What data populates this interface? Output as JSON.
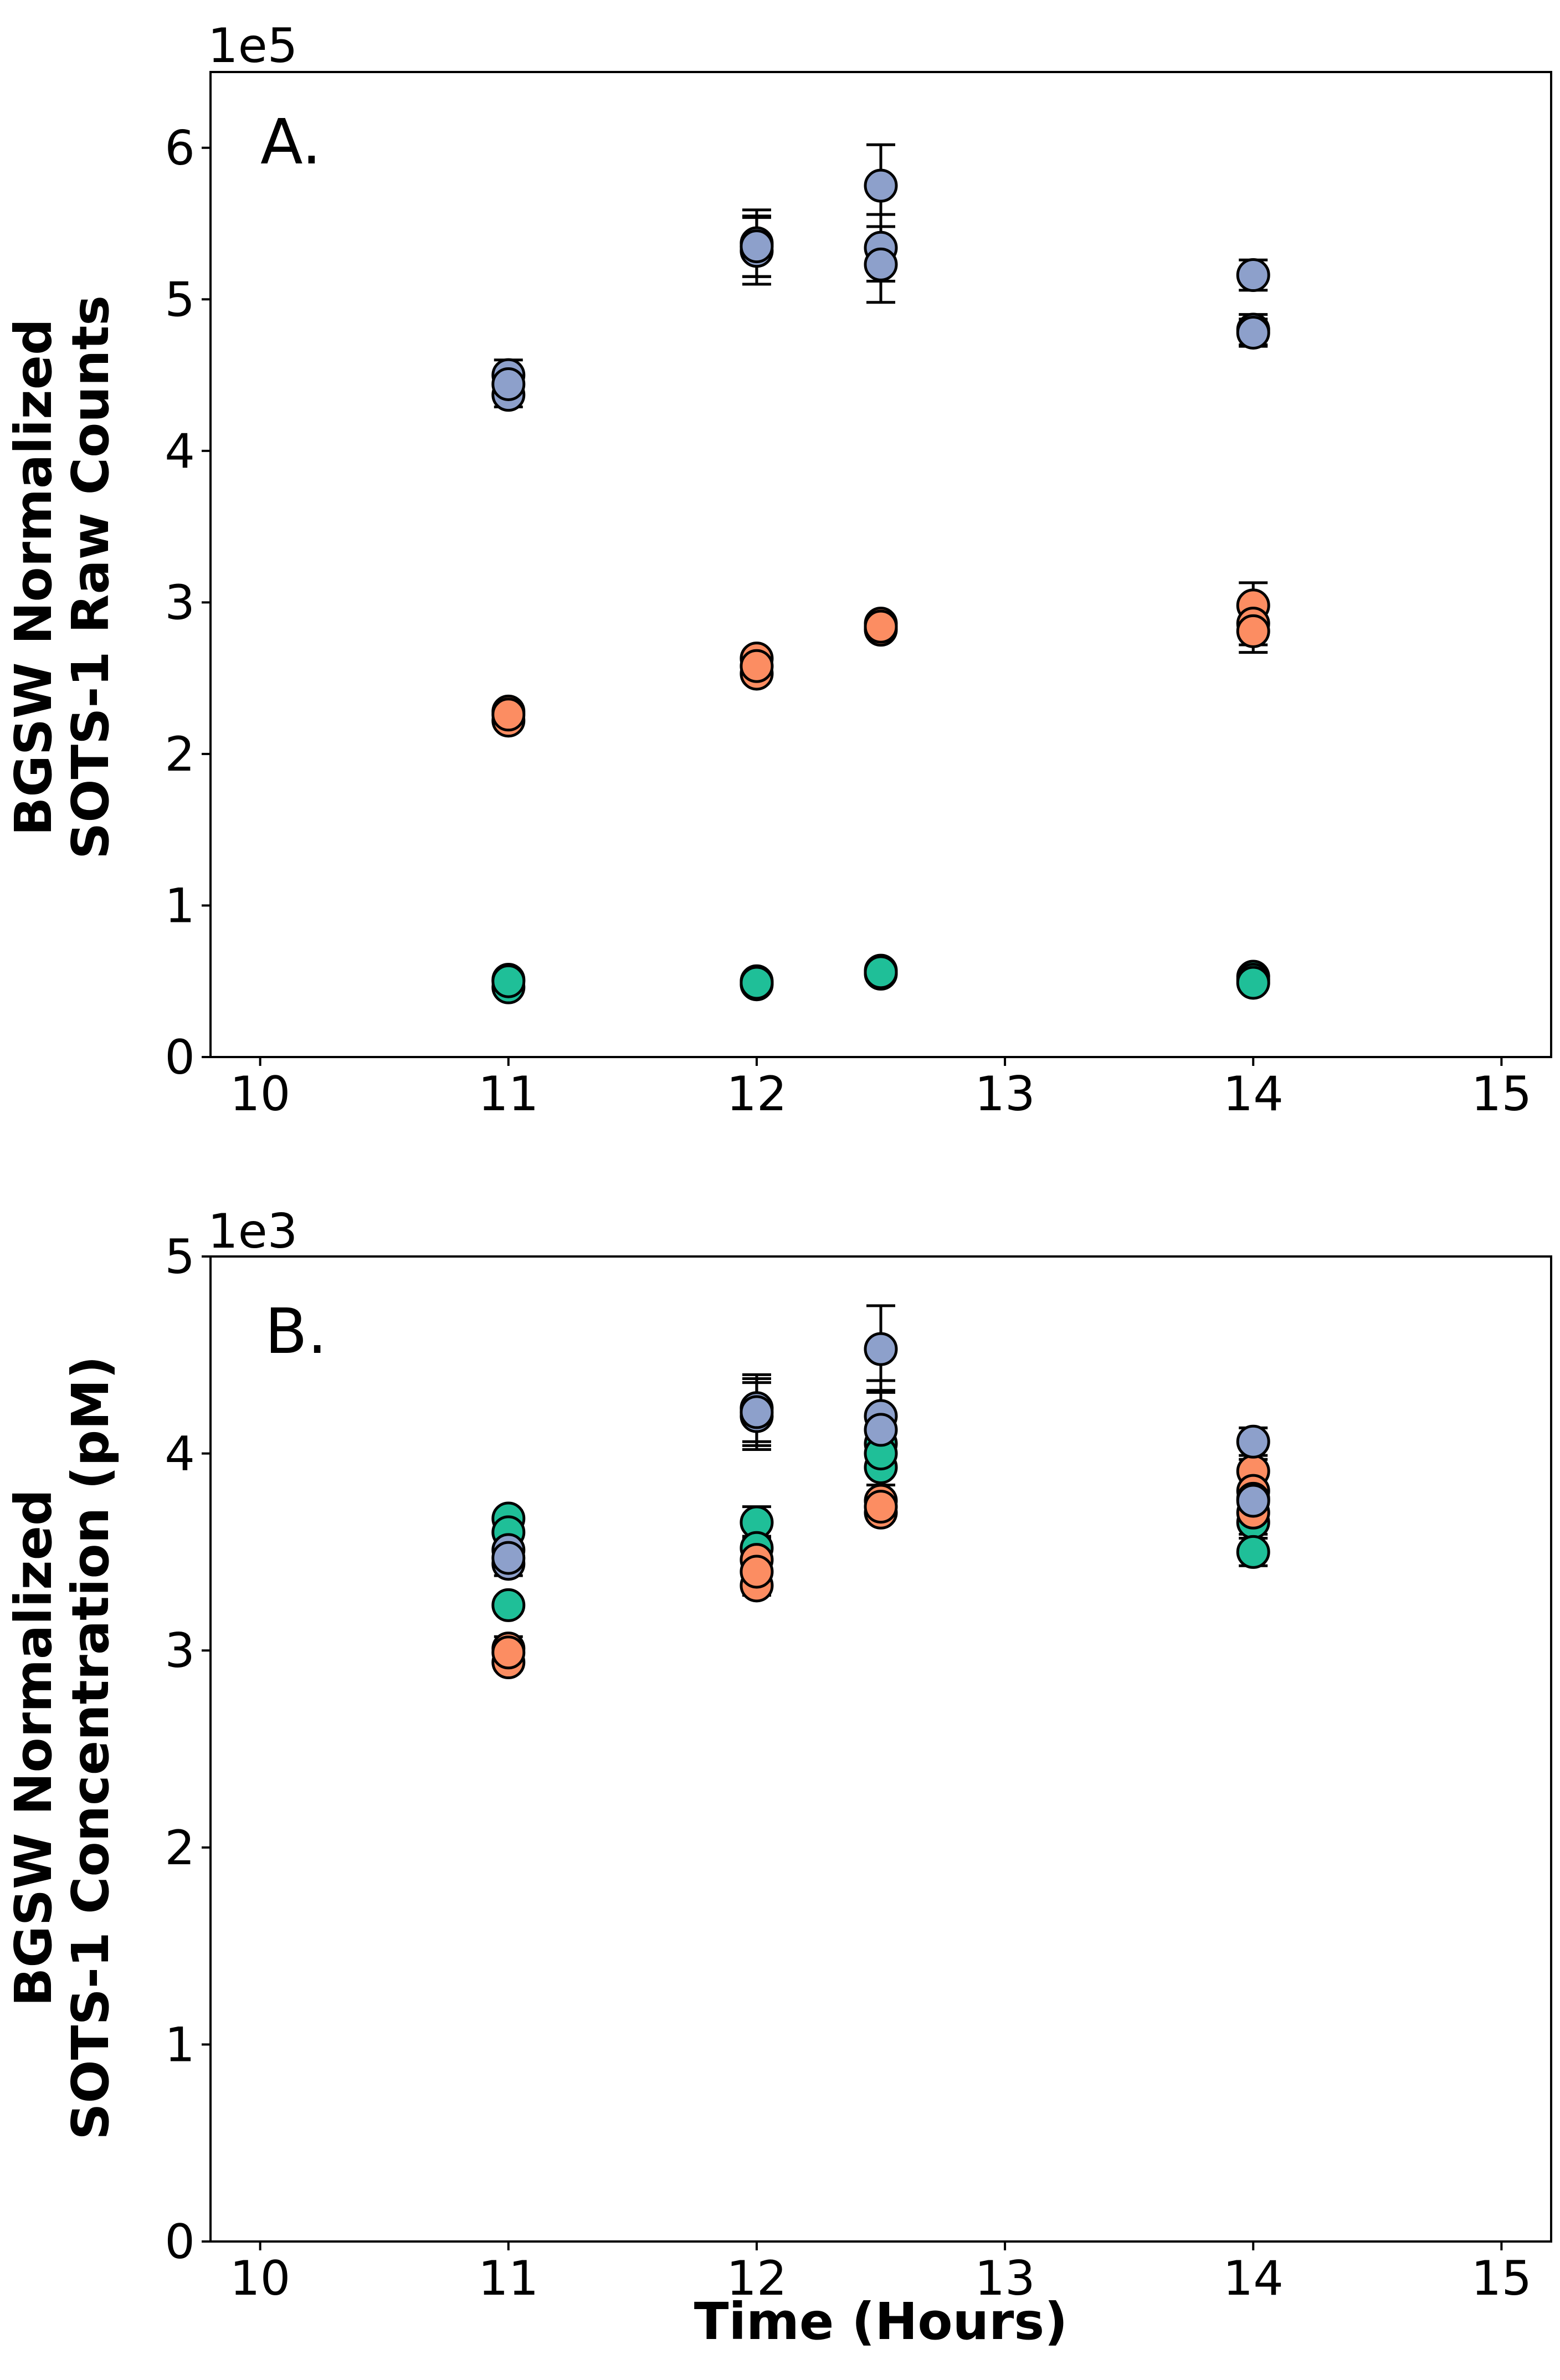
{
  "chart_data": [
    {
      "type": "scatter",
      "panel_label": "A.",
      "ylabel_lines": [
        "BGSW Normalized",
        "SOTS-1 Raw Counts"
      ],
      "xlabel": "",
      "y_offset_text": "1e5",
      "y_scale": 100000,
      "xlim": [
        9.8,
        15.2
      ],
      "ylim": [
        0,
        650000
      ],
      "xticks": [
        10,
        11,
        12,
        13,
        14,
        15
      ],
      "xtick_labels": [
        "10",
        "11",
        "12",
        "13",
        "14",
        "15"
      ],
      "yticks": [
        0,
        100000,
        200000,
        300000,
        400000,
        500000,
        600000
      ],
      "ytick_labels": [
        "0",
        "1",
        "2",
        "3",
        "4",
        "5",
        "6"
      ],
      "grid": false,
      "series": [
        {
          "name": "blue",
          "color": "#8da0cb",
          "points": [
            {
              "x": 11,
              "y": 450000,
              "err": 10000
            },
            {
              "x": 11,
              "y": 437000,
              "err": 8000
            },
            {
              "x": 11,
              "y": 444000,
              "err": 8000
            },
            {
              "x": 12,
              "y": 537000,
              "err": 22000
            },
            {
              "x": 12,
              "y": 532000,
              "err": 22000
            },
            {
              "x": 12,
              "y": 535000,
              "err": 20000
            },
            {
              "x": 12.5,
              "y": 575000,
              "err": 27000
            },
            {
              "x": 12.5,
              "y": 534000,
              "err": 22000
            },
            {
              "x": 12.5,
              "y": 523000,
              "err": 25000
            },
            {
              "x": 14,
              "y": 516000,
              "err": 10000
            },
            {
              "x": 14,
              "y": 480000,
              "err": 10000
            },
            {
              "x": 14,
              "y": 478000,
              "err": 9000
            }
          ]
        },
        {
          "name": "orange",
          "color": "#fc8d62",
          "points": [
            {
              "x": 11,
              "y": 228000,
              "err": 3000
            },
            {
              "x": 11,
              "y": 222000,
              "err": 3000
            },
            {
              "x": 11,
              "y": 226000,
              "err": 3000
            },
            {
              "x": 12,
              "y": 263000,
              "err": 3000
            },
            {
              "x": 12,
              "y": 253000,
              "err": 3000
            },
            {
              "x": 12,
              "y": 258000,
              "err": 3000
            },
            {
              "x": 12.5,
              "y": 286000,
              "err": 3000
            },
            {
              "x": 12.5,
              "y": 282000,
              "err": 3000
            },
            {
              "x": 12.5,
              "y": 284000,
              "err": 3000
            },
            {
              "x": 14,
              "y": 298000,
              "err": 15000
            },
            {
              "x": 14,
              "y": 286000,
              "err": 14000
            },
            {
              "x": 14,
              "y": 281000,
              "err": 14000
            }
          ]
        },
        {
          "name": "green",
          "color": "#1fbf98",
          "points": [
            {
              "x": 11,
              "y": 51000,
              "err": 2000
            },
            {
              "x": 11,
              "y": 46000,
              "err": 2000
            },
            {
              "x": 11,
              "y": 50000,
              "err": 2000
            },
            {
              "x": 12,
              "y": 50000,
              "err": 2000
            },
            {
              "x": 12,
              "y": 48000,
              "err": 2000
            },
            {
              "x": 12,
              "y": 49000,
              "err": 2000
            },
            {
              "x": 12.5,
              "y": 57000,
              "err": 2000
            },
            {
              "x": 12.5,
              "y": 55000,
              "err": 2000
            },
            {
              "x": 12.5,
              "y": 56000,
              "err": 2000
            },
            {
              "x": 14,
              "y": 53000,
              "err": 2000
            },
            {
              "x": 14,
              "y": 51000,
              "err": 2000
            },
            {
              "x": 14,
              "y": 49000,
              "err": 2000
            }
          ]
        }
      ]
    },
    {
      "type": "scatter",
      "panel_label": "B.",
      "ylabel_lines": [
        "BGSW Normalized",
        "SOTS-1 Concentration (pM)"
      ],
      "xlabel": "Time (Hours)",
      "y_offset_text": "1e3",
      "y_scale": 1000,
      "xlim": [
        9.8,
        15.2
      ],
      "ylim": [
        0,
        5000
      ],
      "xticks": [
        10,
        11,
        12,
        13,
        14,
        15
      ],
      "xtick_labels": [
        "10",
        "11",
        "12",
        "13",
        "14",
        "15"
      ],
      "yticks": [
        0,
        1000,
        2000,
        3000,
        4000,
        5000
      ],
      "ytick_labels": [
        "0",
        "1",
        "2",
        "3",
        "4",
        "5"
      ],
      "grid": false,
      "series": [
        {
          "name": "green",
          "color": "#1fbf98",
          "points": [
            {
              "x": 11,
              "y": 3670,
              "err": 40
            },
            {
              "x": 11,
              "y": 3600,
              "err": 40
            },
            {
              "x": 11,
              "y": 3230,
              "err": 40
            },
            {
              "x": 12,
              "y": 3650,
              "err": 80
            },
            {
              "x": 12,
              "y": 3520,
              "err": 60
            },
            {
              "x": 12.5,
              "y": 4050,
              "err": 100
            },
            {
              "x": 12.5,
              "y": 3930,
              "err": 90
            },
            {
              "x": 12.5,
              "y": 4000,
              "err": 90
            },
            {
              "x": 14,
              "y": 3650,
              "err": 60
            },
            {
              "x": 14,
              "y": 3500,
              "err": 70
            }
          ]
        },
        {
          "name": "orange",
          "color": "#fc8d62",
          "points": [
            {
              "x": 11,
              "y": 3010,
              "err": 60
            },
            {
              "x": 11,
              "y": 2940,
              "err": 40
            },
            {
              "x": 11,
              "y": 2990,
              "err": 40
            },
            {
              "x": 12,
              "y": 3460,
              "err": 50
            },
            {
              "x": 12,
              "y": 3330,
              "err": 50
            },
            {
              "x": 12,
              "y": 3400,
              "err": 40
            },
            {
              "x": 12.5,
              "y": 3760,
              "err": 40
            },
            {
              "x": 12.5,
              "y": 3700,
              "err": 40
            },
            {
              "x": 12.5,
              "y": 3730,
              "err": 40
            },
            {
              "x": 14,
              "y": 3910,
              "err": 60
            },
            {
              "x": 14,
              "y": 3700,
              "err": 60
            },
            {
              "x": 14,
              "y": 3810,
              "err": 60
            }
          ]
        },
        {
          "name": "blue",
          "color": "#8da0cb",
          "points": [
            {
              "x": 11,
              "y": 3510,
              "err": 60
            },
            {
              "x": 11,
              "y": 3440,
              "err": 60
            },
            {
              "x": 11,
              "y": 3470,
              "err": 60
            },
            {
              "x": 12,
              "y": 4230,
              "err": 170
            },
            {
              "x": 12,
              "y": 4190,
              "err": 170
            },
            {
              "x": 12,
              "y": 4210,
              "err": 170
            },
            {
              "x": 12.5,
              "y": 4530,
              "err": 220
            },
            {
              "x": 12.5,
              "y": 4190,
              "err": 180
            },
            {
              "x": 12.5,
              "y": 4120,
              "err": 200
            },
            {
              "x": 14,
              "y": 4060,
              "err": 70
            },
            {
              "x": 14,
              "y": 3770,
              "err": 70
            },
            {
              "x": 14,
              "y": 3760,
              "err": 70
            }
          ]
        }
      ]
    }
  ]
}
